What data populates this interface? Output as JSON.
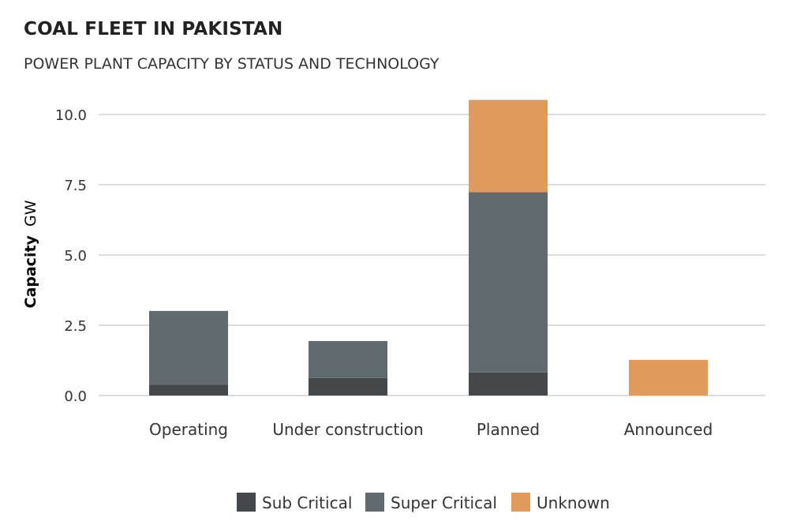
{
  "chart_data": {
    "type": "bar",
    "stacked": true,
    "title": "COAL FLEET IN PAKISTAN",
    "subtitle": "POWER PLANT CAPACITY BY STATUS AND TECHNOLOGY",
    "ylabel_bold": "Capacity",
    "ylabel_unit": "GW",
    "xlabel": "",
    "ylim": [
      0,
      10.5
    ],
    "yticks": [
      0,
      2.5,
      5,
      7.5,
      10
    ],
    "ytick_labels": [
      "0.0",
      "2.5",
      "5.0",
      "7.5",
      "10.0"
    ],
    "grid": true,
    "legend_position": "bottom",
    "categories": [
      "Operating",
      "Under construction",
      "Planned",
      "Announced"
    ],
    "series": [
      {
        "name": "Sub Critical",
        "color": "#45484b",
        "values": [
          0.39,
          0.62,
          0.82,
          0
        ]
      },
      {
        "name": "Super Critical",
        "color": "#606b70",
        "values": [
          2.62,
          1.32,
          6.42,
          0
        ]
      },
      {
        "name": "Unknown",
        "color": "#e09a5e",
        "values": [
          0,
          0,
          3.28,
          1.27
        ]
      }
    ]
  }
}
